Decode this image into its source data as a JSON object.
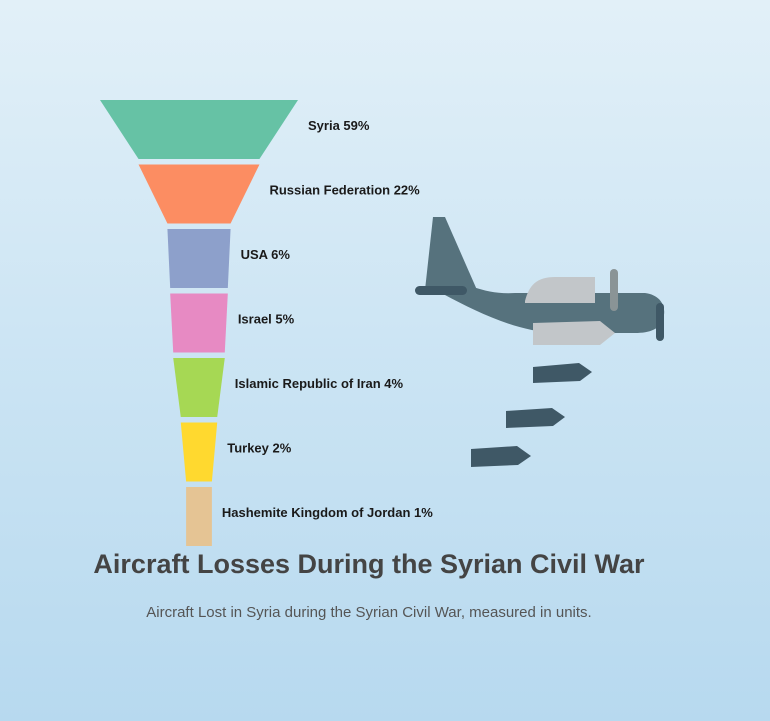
{
  "chart_data": {
    "type": "funnel",
    "title": "Aircraft Losses During the Syrian Civil War",
    "subtitle": "Aircraft Lost in Syria during the Syrian Civil War, measured in units.",
    "unit": "%",
    "categories": [
      "Syria",
      "Russian Federation",
      "USA",
      "Israel",
      "Islamic Republic of Iran",
      "Turkey",
      "Hashemite Kingdom of Jordan"
    ],
    "values": [
      59,
      22,
      6,
      5,
      4,
      2,
      1
    ],
    "labels": [
      "Syria 59%",
      "Russian Federation 22%",
      "USA 6%",
      "Israel 5%",
      "Islamic Republic of Iran 4%",
      "Turkey 2%",
      "Hashemite Kingdom of Jordan 1%"
    ],
    "colors": [
      "#66c2a5",
      "#fc8d62",
      "#8da0cb",
      "#e78ac3",
      "#a6d854",
      "#ffd92f",
      "#e5c494"
    ]
  },
  "illustration": {
    "icon": "bomber-plane-icon",
    "bomb_icon": "bomb-icon",
    "colors": {
      "fuselage": "#56727d",
      "canopy": "#c2c6c9",
      "bomb": "#3f5866",
      "propeller": "#8a9496"
    }
  }
}
